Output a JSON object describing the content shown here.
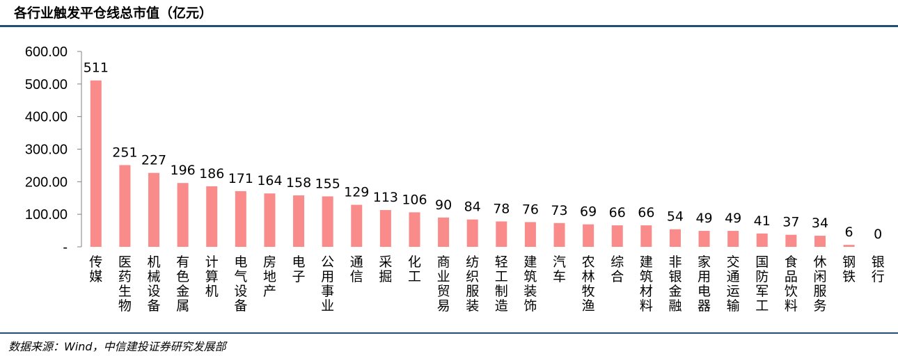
{
  "title": "各行业触发平仓线总市值（亿元）",
  "source": "数据来源：Wind，中信建投证券研究发展部",
  "colors": {
    "bar": "#f98b8b",
    "rule": "#1f4e79",
    "axis": "#808080"
  },
  "chart_data": {
    "type": "bar",
    "title": "各行业触发平仓线总市值（亿元）",
    "categories": [
      "传媒",
      "医药生物",
      "机械设备",
      "有色金属",
      "计算机",
      "电气设备",
      "房地产",
      "电子",
      "公用事业",
      "通信",
      "采掘",
      "化工",
      "商业贸易",
      "纺织服装",
      "轻工制造",
      "建筑装饰",
      "汽车",
      "农林牧渔",
      "综合",
      "建筑材料",
      "非银金融",
      "家用电器",
      "交通运输",
      "国防军工",
      "食品饮料",
      "休闲服务",
      "钢铁",
      "银行"
    ],
    "values": [
      511,
      251,
      227,
      196,
      186,
      171,
      164,
      158,
      155,
      129,
      113,
      106,
      90,
      84,
      78,
      76,
      73,
      69,
      66,
      66,
      54,
      49,
      49,
      41,
      37,
      34,
      6,
      0
    ],
    "data_labels": [
      "511",
      "251",
      "227",
      "196",
      "186",
      "171",
      "164",
      "158",
      "155",
      "129",
      "113",
      "106",
      "90",
      "84",
      "78",
      "76",
      "73",
      "69",
      "66",
      "66",
      "54",
      "49",
      "49",
      "41",
      "37",
      "34",
      "6",
      "0"
    ],
    "y_ticks": [
      "-",
      "100.00",
      "200.00",
      "300.00",
      "400.00",
      "500.00",
      "600.00"
    ],
    "y_tick_values": [
      0,
      100,
      200,
      300,
      400,
      500,
      600
    ],
    "ylim": [
      0,
      600
    ],
    "xlabel": "",
    "ylabel": "",
    "grid": false,
    "legend": "none",
    "label_orientation": "vertical"
  }
}
